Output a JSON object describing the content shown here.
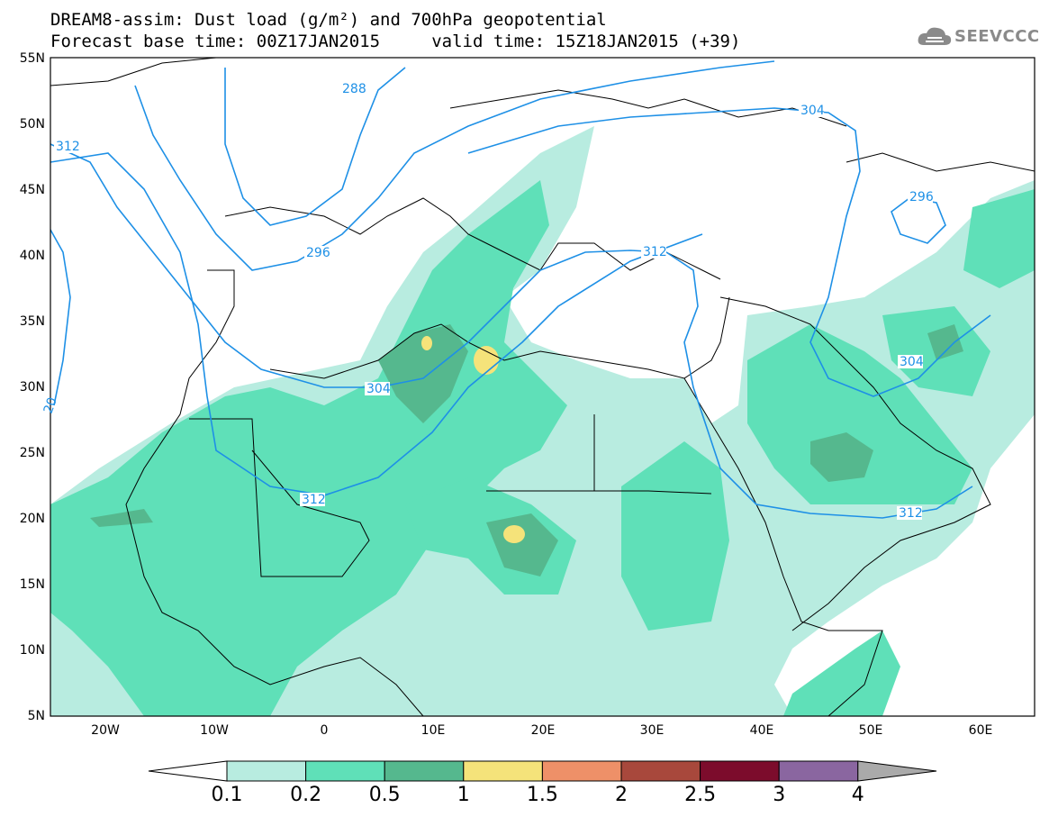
{
  "title_line1": "DREAM8-assim: Dust load (g/m²) and 700hPa geopotential",
  "title_line2": "Forecast base time: 00Z17JAN2015     valid time: 15Z18JAN2015 (+39)",
  "logo_text": "SEEVCCC",
  "logo_icon": "cloud-icon",
  "lat_ticks": [
    "55N",
    "50N",
    "45N",
    "40N",
    "35N",
    "30N",
    "25N",
    "20N",
    "15N",
    "10N",
    "5N"
  ],
  "lon_ticks": [
    "20W",
    "10W",
    "0",
    "10E",
    "20E",
    "30E",
    "40E",
    "50E",
    "60E"
  ],
  "contour_labels": [
    "288",
    "304",
    "312",
    "296",
    "312",
    "304",
    "312",
    "304",
    "312",
    "296",
    "20"
  ],
  "colorbar": {
    "labels": [
      "0.1",
      "0.2",
      "0.5",
      "1",
      "1.5",
      "2",
      "2.5",
      "3",
      "4"
    ],
    "colors": [
      "#b8ece0",
      "#5fe0b8",
      "#55b88e",
      "#f5e37a",
      "#ee9068",
      "#a8483c",
      "#7c0c2c",
      "#8a66a0"
    ],
    "triangle_low": "#ffffff",
    "triangle_high": "#aaaaaa"
  },
  "colors": {
    "contour": "#1e90e6",
    "boundary": "#000000"
  }
}
